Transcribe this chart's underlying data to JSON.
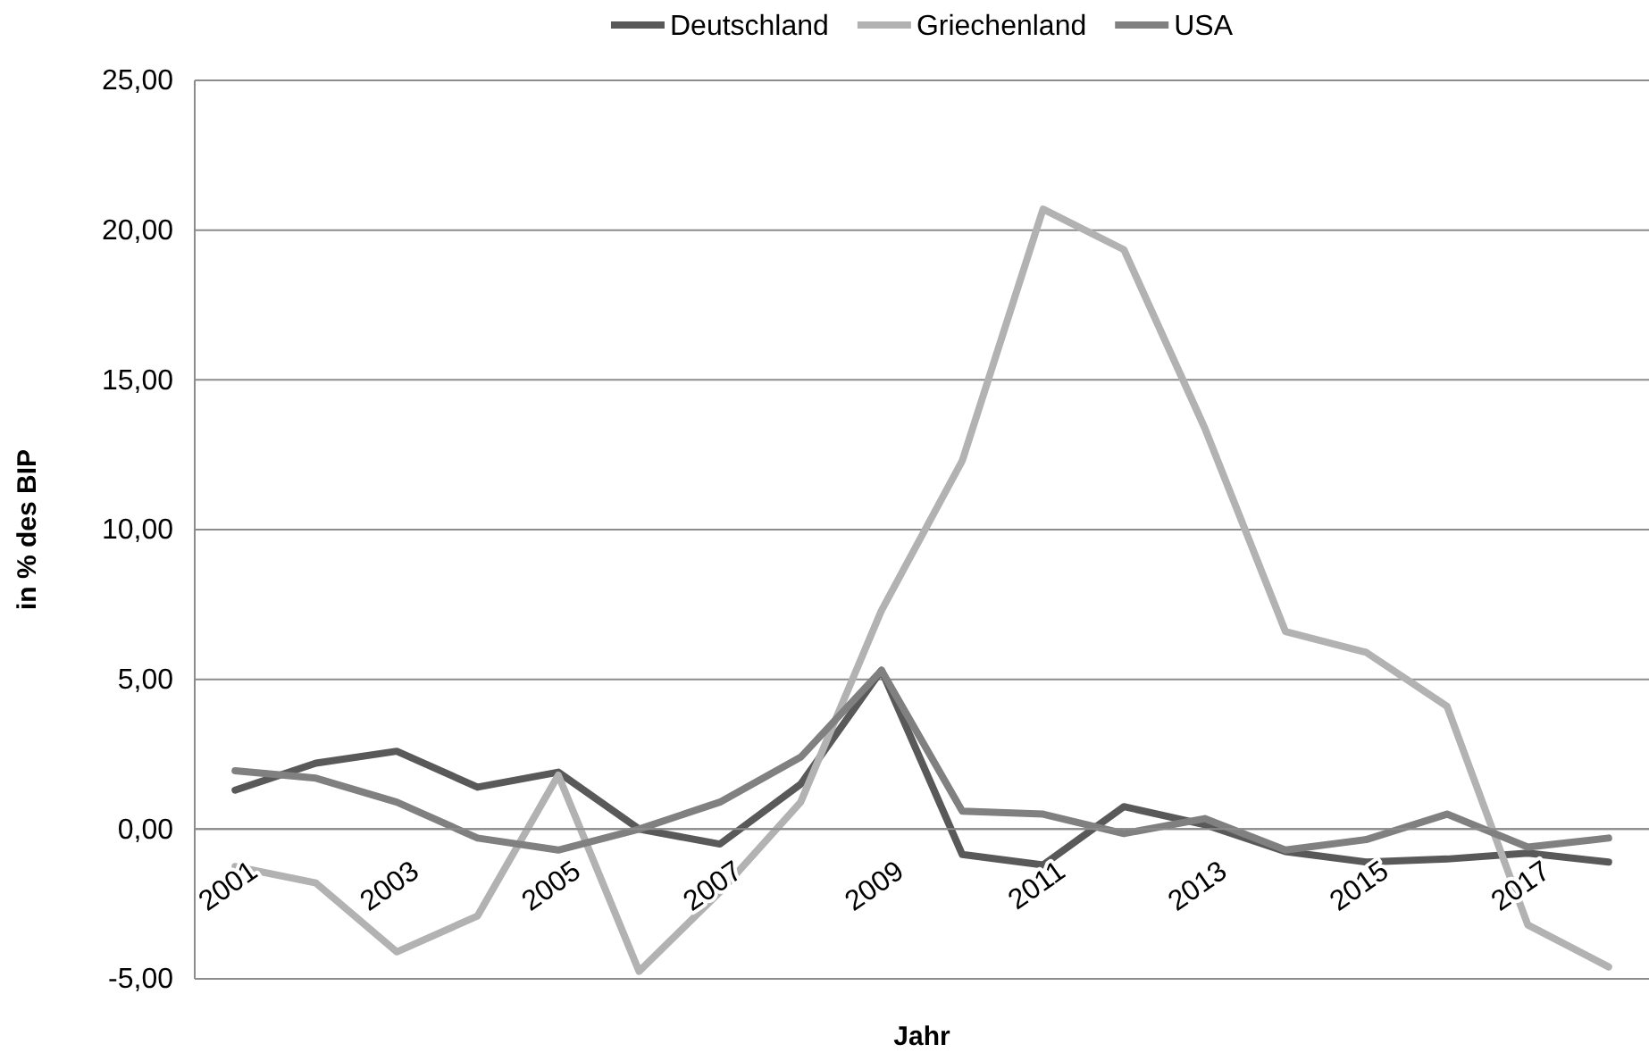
{
  "chart_data": {
    "type": "line",
    "xlabel": "Jahr",
    "ylabel": "in % des BIP",
    "categories": [
      "2001",
      null,
      "2003",
      null,
      "2005",
      null,
      "2007",
      null,
      "2009",
      null,
      "2011",
      null,
      "2013",
      null,
      "2015",
      null,
      "2017",
      null
    ],
    "series": [
      {
        "name": "Deutschland",
        "color": "#595959",
        "values": [
          1.3,
          2.2,
          2.6,
          1.4,
          1.9,
          0.0,
          -0.5,
          1.5,
          5.3,
          -0.85,
          -1.2,
          0.75,
          0.15,
          -0.75,
          -1.1,
          -1.0,
          -0.8,
          -1.1
        ]
      },
      {
        "name": "Griechenland",
        "color": "#b2b2b2",
        "values": [
          -1.25,
          -1.8,
          -4.1,
          -2.9,
          1.8,
          -4.75,
          -2.1,
          0.9,
          7.3,
          12.3,
          20.7,
          19.35,
          13.4,
          6.6,
          5.9,
          4.1,
          -3.2,
          -4.6
        ]
      },
      {
        "name": "USA",
        "color": "#808080",
        "values": [
          1.95,
          1.7,
          0.9,
          -0.3,
          -0.7,
          0.0,
          0.9,
          2.4,
          5.3,
          0.6,
          0.5,
          -0.15,
          0.35,
          -0.7,
          -0.35,
          0.5,
          -0.6,
          -0.3
        ]
      }
    ],
    "ylim": [
      -5,
      25
    ],
    "yticks": [
      {
        "value": -5,
        "label": "-5,00"
      },
      {
        "value": 0,
        "label": "0,00"
      },
      {
        "value": 5,
        "label": "5,00"
      },
      {
        "value": 10,
        "label": "10,00"
      },
      {
        "value": 15,
        "label": "15,00"
      },
      {
        "value": 20,
        "label": "20,00"
      },
      {
        "value": 25,
        "label": "25,00"
      }
    ],
    "grid": "y",
    "legend": "top",
    "marker": "none",
    "line_style": "solid"
  }
}
